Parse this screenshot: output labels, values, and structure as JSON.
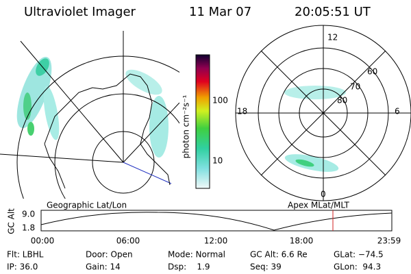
{
  "header": {
    "instrument": "Ultraviolet Imager",
    "date": "11 Mar 07",
    "time": "20:05:51 UT"
  },
  "colorbar": {
    "label": "photon cm⁻²s⁻¹",
    "ticks": [
      "100",
      "10"
    ]
  },
  "polar_plot": {
    "mlt_labels": [
      "12",
      "18",
      "6",
      "0"
    ],
    "mlat_labels": [
      "60",
      "70",
      "80"
    ]
  },
  "timeline": {
    "left_title": "Geographic Lat/Lon",
    "right_title": "Apex MLat/MLT",
    "y_label": "GC Alt",
    "y_ticks": [
      "9.0",
      "1.8"
    ],
    "x_ticks": [
      "00:00",
      "06:00",
      "12:00",
      "18:00",
      "23:59"
    ]
  },
  "info": {
    "rows": [
      [
        "Flt: LBHL",
        "Door: Open",
        "Mode: Normal",
        "GC Alt: 6.6 Re",
        "GLat: −74.5"
      ],
      [
        "IP: 36.0",
        "Gain: 14",
        "Dsp:    1.9",
        "Seq: 39",
        "GLon:  94.3"
      ]
    ]
  }
}
